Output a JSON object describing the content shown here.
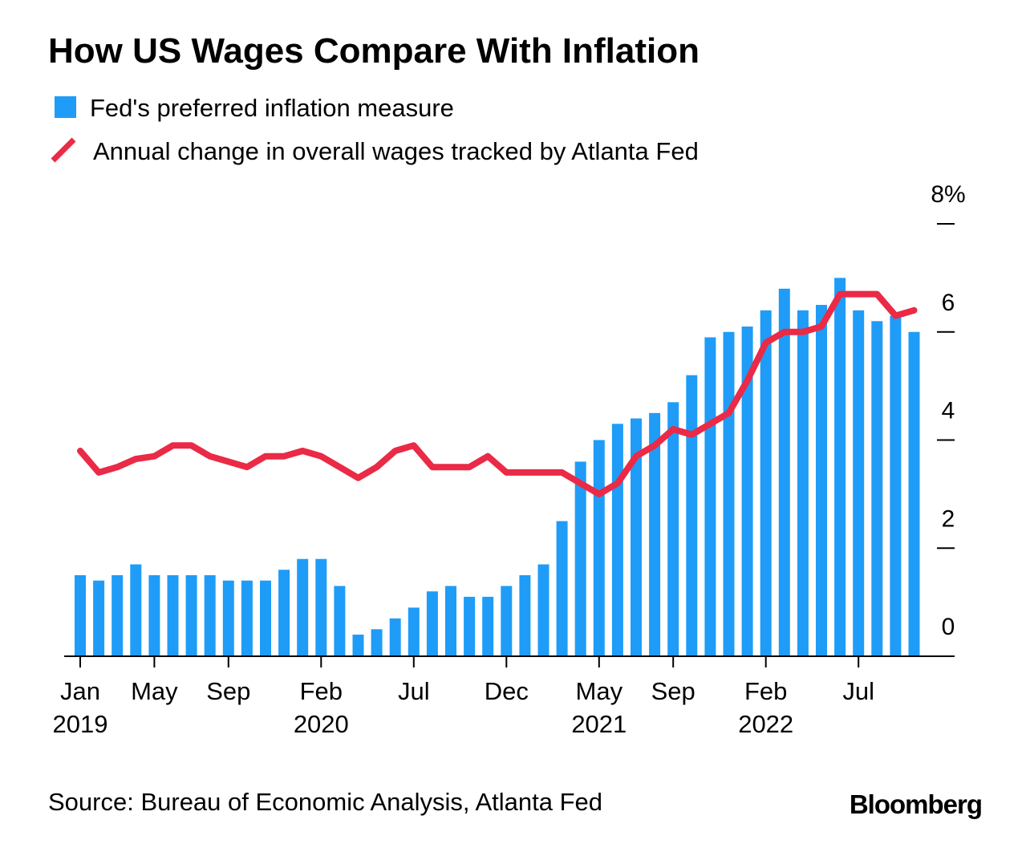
{
  "chart_data": {
    "type": "bar-line",
    "title": "How US Wages Compare With Inflation",
    "source": "Source: Bureau of Economic Analysis, Atlanta Fed",
    "brand": "Bloomberg",
    "categories": [
      "Jan",
      null,
      null,
      null,
      "May",
      null,
      null,
      null,
      "Sep",
      null,
      null,
      null,
      null,
      "Feb",
      null,
      null,
      null,
      null,
      "Jul",
      null,
      null,
      null,
      null,
      "Dec",
      null,
      null,
      null,
      null,
      "May",
      null,
      null,
      null,
      "Sep",
      null,
      null,
      null,
      null,
      "Feb",
      null,
      null,
      null,
      null,
      "Jul",
      null,
      null,
      null
    ],
    "category_years": [
      "2019",
      null,
      null,
      null,
      null,
      null,
      null,
      null,
      null,
      null,
      null,
      null,
      null,
      "2020",
      null,
      null,
      null,
      null,
      null,
      null,
      null,
      null,
      null,
      null,
      null,
      null,
      null,
      null,
      "2021",
      null,
      null,
      null,
      null,
      null,
      null,
      null,
      null,
      "2022",
      null,
      null,
      null,
      null,
      null,
      null,
      null,
      null
    ],
    "series": [
      {
        "name": "Fed's preferred inflation measure",
        "type": "bar",
        "color": "#1f9cf7",
        "values": [
          1.5,
          1.4,
          1.5,
          1.7,
          1.5,
          1.5,
          1.5,
          1.5,
          1.4,
          1.4,
          1.4,
          1.6,
          1.8,
          1.8,
          1.3,
          0.4,
          0.5,
          0.7,
          0.9,
          1.2,
          1.3,
          1.1,
          1.1,
          1.3,
          1.5,
          1.7,
          2.5,
          3.6,
          4.0,
          4.3,
          4.4,
          4.5,
          4.7,
          5.2,
          5.9,
          6.0,
          6.1,
          6.4,
          6.8,
          6.4,
          6.5,
          7.0,
          6.4,
          6.2,
          6.3,
          6.0
        ]
      },
      {
        "name": "Annual change in overall wages tracked by Atlanta Fed",
        "type": "line",
        "color": "#ea2a46",
        "values": [
          3.8,
          3.4,
          3.5,
          3.65,
          3.7,
          3.9,
          3.9,
          3.7,
          3.6,
          3.5,
          3.7,
          3.7,
          3.8,
          3.7,
          3.5,
          3.3,
          3.5,
          3.8,
          3.9,
          3.5,
          3.5,
          3.5,
          3.7,
          3.4,
          3.4,
          3.4,
          3.4,
          3.2,
          3.0,
          3.2,
          3.7,
          3.9,
          4.2,
          4.1,
          4.3,
          4.5,
          5.1,
          5.8,
          6.0,
          6.0,
          6.1,
          6.7,
          6.7,
          6.7,
          6.3,
          6.4
        ]
      }
    ],
    "ylim": [
      0,
      8
    ],
    "yticks": [
      0,
      2,
      4,
      6,
      {
        "value": 8,
        "label": "8%"
      }
    ]
  }
}
